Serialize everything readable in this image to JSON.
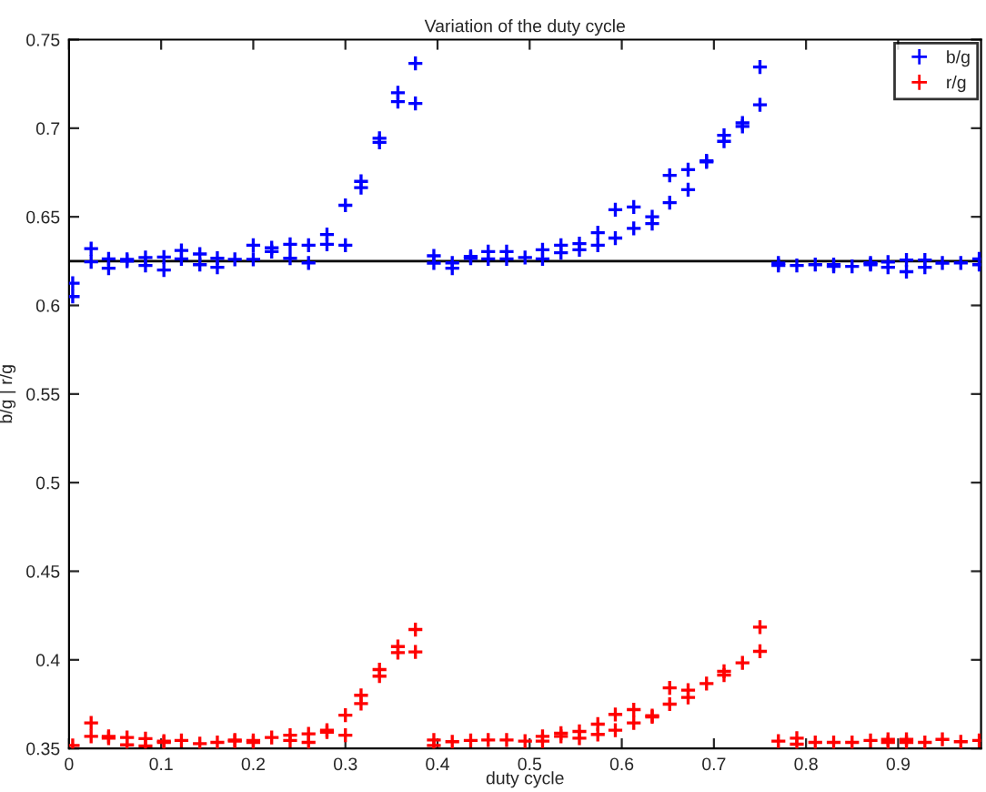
{
  "chart_data": {
    "type": "scatter",
    "title": "Variation of the duty cycle",
    "xlabel": "duty cycle",
    "ylabel": "b/g | r/g",
    "xlim": [
      0,
      0.99
    ],
    "ylim": [
      0.35,
      0.75
    ],
    "xticks": [
      0,
      0.1,
      0.2,
      0.3,
      0.4,
      0.5,
      0.6,
      0.7,
      0.8,
      0.9
    ],
    "yticks": [
      0.35,
      0.4,
      0.45,
      0.5,
      0.55,
      0.6,
      0.65,
      0.7,
      0.75
    ],
    "marker": "cross",
    "grid": false,
    "legend": "top right",
    "ref_lines": [
      {
        "axis": "y",
        "value": 0.625,
        "color": "#000000"
      }
    ],
    "series": [
      {
        "name": "b/g",
        "color": "#0000ff",
        "x": [
          0.004,
          0.004,
          0.024,
          0.024,
          0.043,
          0.043,
          0.063,
          0.063,
          0.083,
          0.083,
          0.103,
          0.103,
          0.122,
          0.122,
          0.142,
          0.142,
          0.161,
          0.161,
          0.18,
          0.2,
          0.2,
          0.22,
          0.22,
          0.24,
          0.24,
          0.26,
          0.26,
          0.28,
          0.28,
          0.3,
          0.3,
          0.317,
          0.317,
          0.337,
          0.337,
          0.357,
          0.357,
          0.376,
          0.376,
          0.396,
          0.396,
          0.416,
          0.416,
          0.436,
          0.436,
          0.455,
          0.455,
          0.475,
          0.475,
          0.495,
          0.514,
          0.514,
          0.534,
          0.534,
          0.554,
          0.554,
          0.574,
          0.574,
          0.593,
          0.593,
          0.613,
          0.613,
          0.633,
          0.633,
          0.652,
          0.652,
          0.672,
          0.672,
          0.692,
          0.692,
          0.711,
          0.711,
          0.731,
          0.731,
          0.75,
          0.75,
          0.77,
          0.77,
          0.79,
          0.81,
          0.83,
          0.83,
          0.85,
          0.87,
          0.87,
          0.889,
          0.889,
          0.909,
          0.909,
          0.929,
          0.929,
          0.948,
          0.968,
          0.988,
          0.988
        ],
        "values": [
          0.6125,
          0.605,
          0.632,
          0.6246,
          0.6263,
          0.621,
          0.626,
          0.625,
          0.627,
          0.6225,
          0.6273,
          0.62,
          0.631,
          0.6263,
          0.629,
          0.623,
          0.6266,
          0.6215,
          0.626,
          0.634,
          0.626,
          0.6325,
          0.6304,
          0.6345,
          0.6266,
          0.634,
          0.624,
          0.64,
          0.6345,
          0.6565,
          0.634,
          0.67,
          0.6665,
          0.6943,
          0.692,
          0.72,
          0.715,
          0.7366,
          0.714,
          0.628,
          0.6239,
          0.624,
          0.621,
          0.6277,
          0.6266,
          0.6304,
          0.6263,
          0.6304,
          0.6263,
          0.627,
          0.6314,
          0.6263,
          0.634,
          0.6297,
          0.6349,
          0.6314,
          0.641,
          0.634,
          0.654,
          0.638,
          0.6555,
          0.6435,
          0.65,
          0.6462,
          0.6734,
          0.658,
          0.6766,
          0.6653,
          0.6816,
          0.681,
          0.696,
          0.6926,
          0.703,
          0.701,
          0.7345,
          0.7132,
          0.6239,
          0.6225,
          0.6225,
          0.623,
          0.623,
          0.622,
          0.622,
          0.624,
          0.623,
          0.6245,
          0.6215,
          0.6256,
          0.619,
          0.6256,
          0.6215,
          0.6239,
          0.624,
          0.6263,
          0.623
        ]
      },
      {
        "name": "r/g",
        "color": "#ff0000",
        "x": [
          0.004,
          0.024,
          0.024,
          0.043,
          0.043,
          0.063,
          0.063,
          0.083,
          0.083,
          0.103,
          0.103,
          0.122,
          0.142,
          0.161,
          0.18,
          0.18,
          0.2,
          0.2,
          0.22,
          0.24,
          0.24,
          0.26,
          0.26,
          0.28,
          0.28,
          0.3,
          0.3,
          0.317,
          0.317,
          0.337,
          0.337,
          0.357,
          0.357,
          0.376,
          0.376,
          0.396,
          0.396,
          0.416,
          0.436,
          0.455,
          0.475,
          0.495,
          0.514,
          0.514,
          0.534,
          0.534,
          0.554,
          0.554,
          0.574,
          0.574,
          0.593,
          0.593,
          0.613,
          0.613,
          0.633,
          0.633,
          0.652,
          0.652,
          0.672,
          0.672,
          0.692,
          0.711,
          0.711,
          0.731,
          0.75,
          0.75,
          0.77,
          0.79,
          0.79,
          0.81,
          0.83,
          0.85,
          0.87,
          0.889,
          0.889,
          0.909,
          0.909,
          0.929,
          0.948,
          0.968,
          0.988
        ],
        "values": [
          0.3517,
          0.3644,
          0.3568,
          0.3568,
          0.3558,
          0.3562,
          0.352,
          0.3555,
          0.3514,
          0.3541,
          0.3534,
          0.3545,
          0.3527,
          0.3534,
          0.3548,
          0.3541,
          0.3545,
          0.3534,
          0.3562,
          0.3575,
          0.3545,
          0.3582,
          0.3534,
          0.3603,
          0.3592,
          0.3688,
          0.3575,
          0.38,
          0.3753,
          0.3945,
          0.3908,
          0.4075,
          0.4041,
          0.4171,
          0.4045,
          0.3548,
          0.3517,
          0.3538,
          0.3545,
          0.3548,
          0.3548,
          0.3541,
          0.3568,
          0.3541,
          0.3586,
          0.3568,
          0.3596,
          0.3558,
          0.3637,
          0.3579,
          0.3692,
          0.3603,
          0.3719,
          0.3644,
          0.3685,
          0.3678,
          0.3842,
          0.375,
          0.3829,
          0.3788,
          0.3866,
          0.3935,
          0.3914,
          0.3983,
          0.4185,
          0.4048,
          0.3541,
          0.3558,
          0.3524,
          0.3534,
          0.3534,
          0.3534,
          0.3545,
          0.3551,
          0.3534,
          0.3551,
          0.3534,
          0.3534,
          0.3551,
          0.3538,
          0.3545
        ]
      }
    ]
  }
}
